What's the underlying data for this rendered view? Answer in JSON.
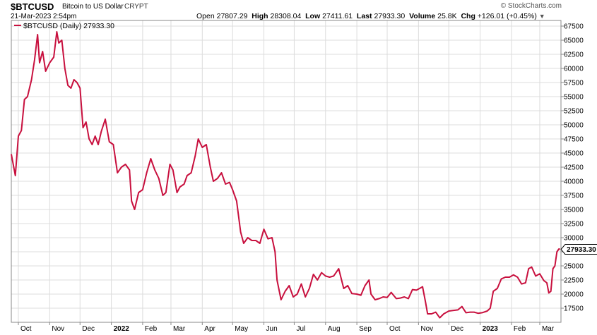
{
  "header": {
    "symbol": "$BTCUSD",
    "description": "Bitcoin to US Dollar",
    "exchange": "CRYPT",
    "datetime": "21-Mar-2023 2:54pm",
    "open_label": "Open",
    "open": "27807.29",
    "high_label": "High",
    "high": "28308.04",
    "low_label": "Low",
    "low": "27411.61",
    "last_label": "Last",
    "last": "27933.30",
    "volume_label": "Volume",
    "volume": "25.8K",
    "chg_label": "Chg",
    "chg": "+126.01 (+0.45%)",
    "brand": "© StockCharts.com"
  },
  "colors": {
    "line": "#c8103e",
    "grid": "#dcdcdc",
    "axis": "#888888"
  },
  "chart_data": {
    "type": "line",
    "legend": "$BTCUSD (Daily) 27933.30",
    "legend_position": "top-left",
    "last_value_label": "27933.30",
    "grid": true,
    "ylim": [
      15000,
      68500
    ],
    "y_ticks": [
      17500,
      20000,
      22500,
      25000,
      27500,
      30000,
      32500,
      35000,
      37500,
      40000,
      42500,
      45000,
      47500,
      50000,
      52500,
      55000,
      57500,
      60000,
      62500,
      65000,
      67500
    ],
    "x_range": [
      "2021-09-24",
      "2023-03-22"
    ],
    "x_ticks": [
      {
        "date": "2021-10-01",
        "label": "Oct",
        "bold": false
      },
      {
        "date": "2021-11-01",
        "label": "Nov",
        "bold": false
      },
      {
        "date": "2021-12-01",
        "label": "Dec",
        "bold": false
      },
      {
        "date": "2022-01-01",
        "label": "2022",
        "bold": true
      },
      {
        "date": "2022-02-01",
        "label": "Feb",
        "bold": false
      },
      {
        "date": "2022-03-01",
        "label": "Mar",
        "bold": false
      },
      {
        "date": "2022-04-01",
        "label": "Apr",
        "bold": false
      },
      {
        "date": "2022-05-01",
        "label": "May",
        "bold": false
      },
      {
        "date": "2022-06-01",
        "label": "Jun",
        "bold": false
      },
      {
        "date": "2022-07-01",
        "label": "Jul",
        "bold": false
      },
      {
        "date": "2022-08-01",
        "label": "Aug",
        "bold": false
      },
      {
        "date": "2022-09-01",
        "label": "Sep",
        "bold": false
      },
      {
        "date": "2022-10-01",
        "label": "Oct",
        "bold": false
      },
      {
        "date": "2022-11-01",
        "label": "Nov",
        "bold": false
      },
      {
        "date": "2022-12-01",
        "label": "Dec",
        "bold": false
      },
      {
        "date": "2023-01-01",
        "label": "2023",
        "bold": true
      },
      {
        "date": "2023-02-01",
        "label": "Feb",
        "bold": false
      },
      {
        "date": "2023-03-01",
        "label": "Mar",
        "bold": false
      }
    ],
    "series": [
      {
        "name": "$BTCUSD",
        "points": [
          [
            "2021-09-24",
            44800
          ],
          [
            "2021-09-28",
            41000
          ],
          [
            "2021-10-01",
            48000
          ],
          [
            "2021-10-04",
            49000
          ],
          [
            "2021-10-07",
            54500
          ],
          [
            "2021-10-10",
            55000
          ],
          [
            "2021-10-14",
            58000
          ],
          [
            "2021-10-17",
            61500
          ],
          [
            "2021-10-20",
            66000
          ],
          [
            "2021-10-22",
            61000
          ],
          [
            "2021-10-25",
            63000
          ],
          [
            "2021-10-28",
            59500
          ],
          [
            "2021-11-01",
            61000
          ],
          [
            "2021-11-05",
            62000
          ],
          [
            "2021-11-08",
            66500
          ],
          [
            "2021-11-10",
            64500
          ],
          [
            "2021-11-13",
            65000
          ],
          [
            "2021-11-16",
            60000
          ],
          [
            "2021-11-19",
            57000
          ],
          [
            "2021-11-22",
            56500
          ],
          [
            "2021-11-25",
            58000
          ],
          [
            "2021-11-28",
            57500
          ],
          [
            "2021-12-01",
            56500
          ],
          [
            "2021-12-04",
            49500
          ],
          [
            "2021-12-07",
            50500
          ],
          [
            "2021-12-10",
            47500
          ],
          [
            "2021-12-13",
            46500
          ],
          [
            "2021-12-16",
            48000
          ],
          [
            "2021-12-19",
            46500
          ],
          [
            "2021-12-22",
            48800
          ],
          [
            "2021-12-26",
            51000
          ],
          [
            "2021-12-30",
            47000
          ],
          [
            "2022-01-03",
            46500
          ],
          [
            "2022-01-07",
            41500
          ],
          [
            "2022-01-11",
            42500
          ],
          [
            "2022-01-15",
            43000
          ],
          [
            "2022-01-19",
            42000
          ],
          [
            "2022-01-21",
            36500
          ],
          [
            "2022-01-24",
            35000
          ],
          [
            "2022-01-28",
            38000
          ],
          [
            "2022-02-01",
            38500
          ],
          [
            "2022-02-05",
            41500
          ],
          [
            "2022-02-09",
            44000
          ],
          [
            "2022-02-13",
            42000
          ],
          [
            "2022-02-17",
            40500
          ],
          [
            "2022-02-21",
            37500
          ],
          [
            "2022-02-24",
            38000
          ],
          [
            "2022-02-28",
            43000
          ],
          [
            "2022-03-03",
            42000
          ],
          [
            "2022-03-07",
            38000
          ],
          [
            "2022-03-10",
            39000
          ],
          [
            "2022-03-14",
            39500
          ],
          [
            "2022-03-17",
            41000
          ],
          [
            "2022-03-21",
            41500
          ],
          [
            "2022-03-25",
            44500
          ],
          [
            "2022-03-28",
            47500
          ],
          [
            "2022-04-01",
            46000
          ],
          [
            "2022-04-05",
            46500
          ],
          [
            "2022-04-09",
            42500
          ],
          [
            "2022-04-12",
            40000
          ],
          [
            "2022-04-16",
            40500
          ],
          [
            "2022-04-20",
            41500
          ],
          [
            "2022-04-24",
            39500
          ],
          [
            "2022-04-28",
            39800
          ],
          [
            "2022-05-01",
            38500
          ],
          [
            "2022-05-05",
            36500
          ],
          [
            "2022-05-09",
            31000
          ],
          [
            "2022-05-12",
            29000
          ],
          [
            "2022-05-16",
            30000
          ],
          [
            "2022-05-20",
            29500
          ],
          [
            "2022-05-24",
            29500
          ],
          [
            "2022-05-28",
            29000
          ],
          [
            "2022-06-01",
            31500
          ],
          [
            "2022-06-05",
            29800
          ],
          [
            "2022-06-09",
            30000
          ],
          [
            "2022-06-12",
            27500
          ],
          [
            "2022-06-14",
            22500
          ],
          [
            "2022-06-18",
            19000
          ],
          [
            "2022-06-22",
            20500
          ],
          [
            "2022-06-26",
            21500
          ],
          [
            "2022-06-30",
            19500
          ],
          [
            "2022-07-04",
            20000
          ],
          [
            "2022-07-08",
            21800
          ],
          [
            "2022-07-12",
            19500
          ],
          [
            "2022-07-16",
            21000
          ],
          [
            "2022-07-20",
            23500
          ],
          [
            "2022-07-24",
            22500
          ],
          [
            "2022-07-28",
            23800
          ],
          [
            "2022-08-01",
            23200
          ],
          [
            "2022-08-05",
            23000
          ],
          [
            "2022-08-09",
            23200
          ],
          [
            "2022-08-14",
            24500
          ],
          [
            "2022-08-19",
            21000
          ],
          [
            "2022-08-23",
            21500
          ],
          [
            "2022-08-27",
            20100
          ],
          [
            "2022-09-01",
            20000
          ],
          [
            "2022-09-05",
            19800
          ],
          [
            "2022-09-09",
            21500
          ],
          [
            "2022-09-13",
            22500
          ],
          [
            "2022-09-15",
            20000
          ],
          [
            "2022-09-19",
            19000
          ],
          [
            "2022-09-23",
            19200
          ],
          [
            "2022-09-27",
            19500
          ],
          [
            "2022-10-01",
            19400
          ],
          [
            "2022-10-05",
            20300
          ],
          [
            "2022-10-10",
            19200
          ],
          [
            "2022-10-14",
            19300
          ],
          [
            "2022-10-18",
            19500
          ],
          [
            "2022-10-22",
            19200
          ],
          [
            "2022-10-26",
            20800
          ],
          [
            "2022-10-30",
            20700
          ],
          [
            "2022-11-05",
            21300
          ],
          [
            "2022-11-08",
            18500
          ],
          [
            "2022-11-10",
            16500
          ],
          [
            "2022-11-14",
            16500
          ],
          [
            "2022-11-18",
            16800
          ],
          [
            "2022-11-22",
            15800
          ],
          [
            "2022-11-26",
            16500
          ],
          [
            "2022-12-01",
            17000
          ],
          [
            "2022-12-05",
            17100
          ],
          [
            "2022-12-10",
            17200
          ],
          [
            "2022-12-14",
            17800
          ],
          [
            "2022-12-18",
            16700
          ],
          [
            "2022-12-22",
            16800
          ],
          [
            "2022-12-26",
            16800
          ],
          [
            "2022-12-30",
            16600
          ],
          [
            "2023-01-03",
            16700
          ],
          [
            "2023-01-08",
            17000
          ],
          [
            "2023-01-11",
            17500
          ],
          [
            "2023-01-14",
            20500
          ],
          [
            "2023-01-18",
            21000
          ],
          [
            "2023-01-22",
            22700
          ],
          [
            "2023-01-26",
            23000
          ],
          [
            "2023-01-30",
            23000
          ],
          [
            "2023-02-03",
            23400
          ],
          [
            "2023-02-07",
            23000
          ],
          [
            "2023-02-11",
            21800
          ],
          [
            "2023-02-15",
            22000
          ],
          [
            "2023-02-18",
            24500
          ],
          [
            "2023-02-21",
            24800
          ],
          [
            "2023-02-25",
            23200
          ],
          [
            "2023-03-01",
            23600
          ],
          [
            "2023-03-05",
            22400
          ],
          [
            "2023-03-08",
            22000
          ],
          [
            "2023-03-10",
            20200
          ],
          [
            "2023-03-12",
            20500
          ],
          [
            "2023-03-14",
            24500
          ],
          [
            "2023-03-16",
            25000
          ],
          [
            "2023-03-18",
            27500
          ],
          [
            "2023-03-20",
            28000
          ],
          [
            "2023-03-21",
            27933
          ]
        ]
      }
    ]
  }
}
